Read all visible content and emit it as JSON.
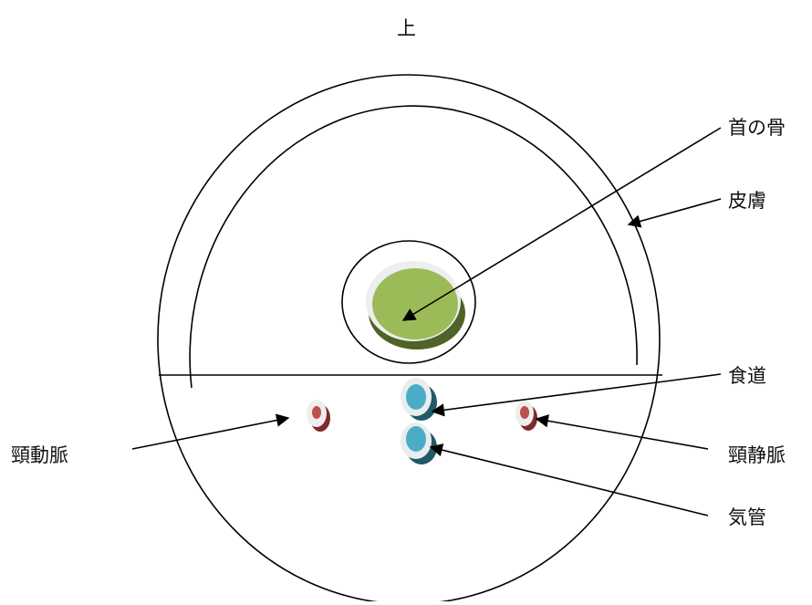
{
  "diagram": {
    "orientation_label": "上",
    "labels": {
      "bone": "首の骨",
      "skin": "皮膚",
      "esophagus": "食道",
      "carotid_artery": "頸動脈",
      "jugular_vein": "頸静脈",
      "trachea": "気管"
    },
    "colors": {
      "bone": "#9bbb59",
      "bone_shadow": "#4f6228",
      "vessel_artery": "#c0504d",
      "vessel_artery_shadow": "#7f2a28",
      "tube_blue": "#4bacc6",
      "tube_blue_shadow": "#215967",
      "line": "#000000"
    }
  }
}
